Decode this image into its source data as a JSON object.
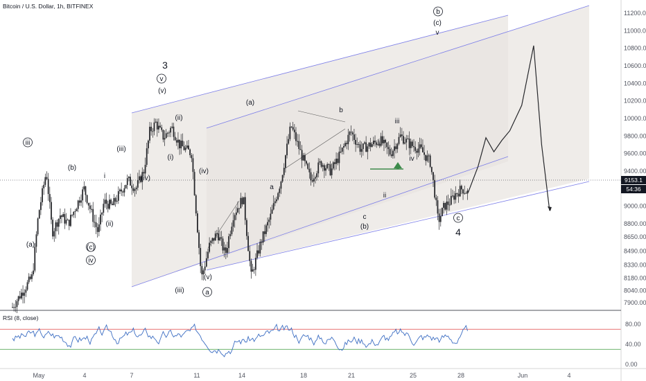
{
  "header": {
    "title": "Bitcoin / U.S. Dollar, 1h, BITFINEX"
  },
  "price_badges": {
    "last_price": "9153.1",
    "countdown": "54:36"
  },
  "rsi": {
    "title": "RSI (8, close)",
    "levels": [
      80,
      40,
      0
    ],
    "overbought": 70,
    "oversold": 30
  },
  "colors": {
    "candles": "#26272b",
    "channel_line": "#7b7de8",
    "channel_fill": "#e8e4df",
    "rsi_line": "#3a6cc2",
    "rsi_upper": "#e04545",
    "rsi_lower": "#3c9a3c",
    "green_marker": "#3c8a4a",
    "badge_bg": "#131722"
  },
  "chart_data": {
    "type": "candlestick",
    "y_axis": {
      "ticks": [
        11200,
        11000,
        10800,
        10600,
        10400,
        10200,
        10000,
        9800,
        9600,
        9400,
        9200,
        9000,
        8800,
        8650,
        8490,
        8330,
        8180,
        8040,
        7900
      ],
      "range": [
        7810,
        11280
      ]
    },
    "x_axis": {
      "ticks": [
        "May",
        "4",
        "7",
        "11",
        "14",
        "18",
        "21",
        "25",
        "28",
        "Jun",
        "4"
      ]
    },
    "price_path": [
      [
        0,
        7850
      ],
      [
        1,
        8200
      ],
      [
        1.3,
        8900
      ],
      [
        1.7,
        9400
      ],
      [
        2.0,
        8700
      ],
      [
        2.4,
        8900
      ],
      [
        2.8,
        8800
      ],
      [
        3.2,
        9000
      ],
      [
        3.6,
        9200
      ],
      [
        4.0,
        8900
      ],
      [
        4.3,
        8700
      ],
      [
        4.6,
        9050
      ],
      [
        5.0,
        9000
      ],
      [
        5.4,
        9150
      ],
      [
        5.8,
        9300
      ],
      [
        6.2,
        9200
      ],
      [
        6.6,
        9400
      ],
      [
        6.9,
        9850
      ],
      [
        7.2,
        9950
      ],
      [
        7.6,
        9780
      ],
      [
        8.0,
        9900
      ],
      [
        8.4,
        9700
      ],
      [
        9.0,
        9600
      ],
      [
        9.5,
        8180
      ],
      [
        9.9,
        8550
      ],
      [
        10.3,
        8700
      ],
      [
        10.7,
        8450
      ],
      [
        11.1,
        8900
      ],
      [
        11.6,
        9100
      ],
      [
        12.0,
        8200
      ],
      [
        12.5,
        8600
      ],
      [
        13.0,
        8900
      ],
      [
        13.5,
        9300
      ],
      [
        14.0,
        9920
      ],
      [
        14.5,
        9600
      ],
      [
        15.0,
        9300
      ],
      [
        15.5,
        9500
      ],
      [
        16.0,
        9400
      ],
      [
        16.5,
        9600
      ],
      [
        17.0,
        9850
      ],
      [
        17.5,
        9650
      ],
      [
        18.0,
        9700
      ],
      [
        18.5,
        9750
      ],
      [
        19.0,
        9600
      ],
      [
        19.5,
        9800
      ],
      [
        20.0,
        9700
      ],
      [
        20.5,
        9650
      ],
      [
        21.0,
        9500
      ],
      [
        21.2,
        9200
      ],
      [
        21.4,
        8820
      ],
      [
        21.7,
        9000
      ],
      [
        22.0,
        9050
      ],
      [
        22.3,
        9150
      ],
      [
        22.6,
        9200
      ],
      [
        22.9,
        9153
      ]
    ],
    "projection_path": [
      [
        22.9,
        9153
      ],
      [
        23.4,
        9450
      ],
      [
        23.8,
        9780
      ],
      [
        24.2,
        9620
      ],
      [
        24.6,
        9750
      ],
      [
        25.0,
        9860
      ],
      [
        25.6,
        10150
      ],
      [
        26.2,
        10830
      ],
      [
        26.6,
        9700
      ],
      [
        27.0,
        8950
      ]
    ],
    "annotations": [
      "iii",
      "(a)",
      "(b)",
      "(c)",
      "iv",
      "i",
      "(ii)",
      "(iii)",
      "(iv)",
      "3",
      "v",
      "(v)",
      "(ii)",
      "(i)",
      "(iii)",
      "(iv)",
      "(v)",
      "a",
      "(a)",
      "a",
      "b",
      "c",
      "(b)",
      "i",
      "ii",
      "iii",
      "iv",
      "b",
      "(c)",
      "v",
      "c",
      "4"
    ]
  }
}
